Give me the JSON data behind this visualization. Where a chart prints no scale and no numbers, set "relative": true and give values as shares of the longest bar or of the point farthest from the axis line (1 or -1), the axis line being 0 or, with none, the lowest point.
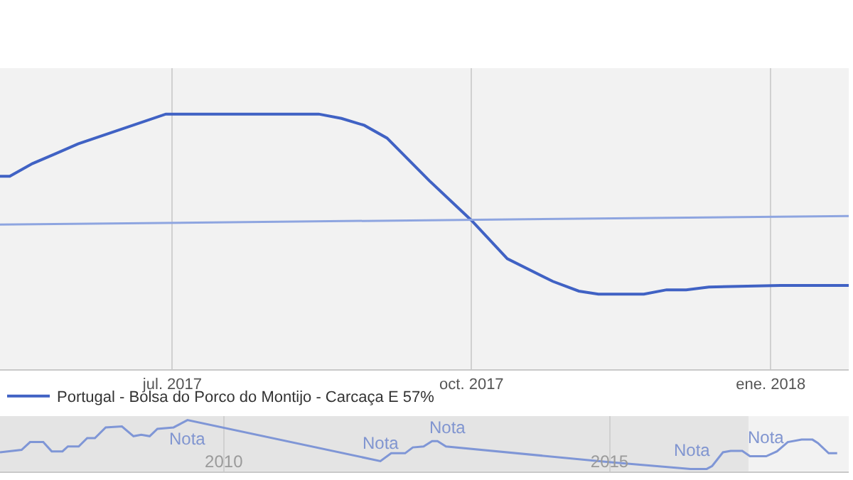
{
  "chart_data": [
    {
      "type": "line",
      "relative": true,
      "grid": "x",
      "legend": "bottom left",
      "marker": "none",
      "line_style": "solid",
      "xlim": [
        "2017-05-09",
        "2018-01-25"
      ],
      "xticks": [
        {
          "value": "2017-07-01",
          "label": "jul. 2017"
        },
        {
          "value": "2017-10-01",
          "label": "oct. 2017"
        },
        {
          "value": "2018-01-01",
          "label": "ene. 2018"
        }
      ],
      "series": [
        {
          "name": "Portugal - Bolsa do Porco do Montijo - Carcaça E 57%",
          "color": "#4062c4",
          "x": [
            "2017-05-09",
            "2017-05-12",
            "2017-05-19",
            "2017-05-26",
            "2017-06-02",
            "2017-06-29",
            "2017-08-15",
            "2017-08-22",
            "2017-08-29",
            "2017-09-05",
            "2017-09-18",
            "2017-10-01",
            "2017-10-12",
            "2017-10-26",
            "2017-11-03",
            "2017-11-09",
            "2017-11-23",
            "2017-11-30",
            "2017-12-06",
            "2017-12-13",
            "2018-01-04",
            "2018-01-25"
          ],
          "values": [
            0.756,
            0.756,
            0.806,
            0.844,
            0.883,
            1.0,
            1.0,
            0.983,
            0.956,
            0.906,
            0.739,
            0.583,
            0.433,
            0.344,
            0.306,
            0.294,
            0.294,
            0.311,
            0.311,
            0.322,
            0.328,
            0.328
          ]
        },
        {
          "type": "line",
          "color": "#8ea5e0",
          "x": [
            "2017-05-09",
            "2018-01-25"
          ],
          "values": [
            0.567,
            0.6
          ]
        }
      ]
    },
    {
      "type": "line",
      "relative": true,
      "grid": "x",
      "marker": "none",
      "xlim": [
        2007.1,
        2018.1
      ],
      "xticks": [
        2010,
        2015
      ],
      "bands": [
        {
          "axis": "x",
          "from": 2007.1,
          "to": 2016.8,
          "color": "#e4e4e4"
        }
      ],
      "annotations": [
        {
          "text": "Nota",
          "x": 2009.53,
          "y": 1.0
        },
        {
          "text": "Nota",
          "x": 2012.03,
          "y": 0.16
        },
        {
          "text": "Nota",
          "x": 2012.9,
          "y": 0.46
        },
        {
          "text": "Nota",
          "x": 2016.07,
          "y": 0
        },
        {
          "text": "Nota",
          "x": 2017.03,
          "y": 0.26
        }
      ],
      "series": [
        {
          "color": "#7f96d6",
          "x": [
            2007.1,
            2007.38,
            2007.49,
            2007.66,
            2007.77,
            2007.91,
            2007.98,
            2008.12,
            2008.23,
            2008.33,
            2008.47,
            2008.68,
            2008.83,
            2008.93,
            2009.04,
            2009.14,
            2009.35,
            2009.53,
            2012.03,
            2012.17,
            2012.35,
            2012.45,
            2012.59,
            2012.7,
            2012.77,
            2012.88,
            2014.99,
            2016.05,
            2016.26,
            2016.33,
            2016.47,
            2016.57,
            2016.72,
            2016.82,
            2017.03,
            2017.17,
            2017.31,
            2017.49,
            2017.63,
            2017.7,
            2017.84,
            2017.95
          ],
          "values": [
            0.34,
            0.39,
            0.55,
            0.55,
            0.36,
            0.36,
            0.46,
            0.46,
            0.63,
            0.63,
            0.85,
            0.87,
            0.67,
            0.7,
            0.67,
            0.82,
            0.85,
            1.0,
            0.16,
            0.32,
            0.32,
            0.44,
            0.46,
            0.57,
            0.57,
            0.46,
            0.14,
            0,
            0,
            0.06,
            0.34,
            0.37,
            0.37,
            0.26,
            0.26,
            0.36,
            0.55,
            0.6,
            0.6,
            0.53,
            0.32,
            0.32
          ]
        }
      ]
    }
  ]
}
